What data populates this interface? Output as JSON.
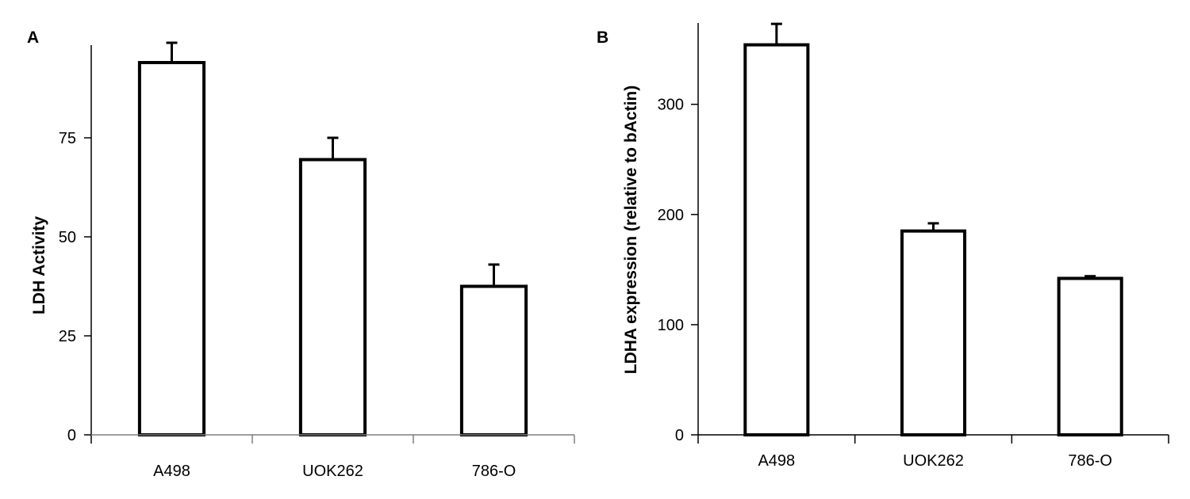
{
  "chart_data": [
    {
      "panel": "A",
      "type": "bar",
      "categories": [
        "A498",
        "UOK262",
        "786-O"
      ],
      "values": [
        94,
        69.5,
        37.5
      ],
      "errors": [
        5,
        5.5,
        5.5
      ],
      "ylabel": "LDH Activity",
      "yticks": [
        "0",
        "25",
        "50",
        "75"
      ],
      "ylim": [
        0,
        100
      ]
    },
    {
      "panel": "B",
      "type": "bar",
      "categories": [
        "A498",
        "UOK262",
        "786-O"
      ],
      "values": [
        354,
        185,
        142
      ],
      "errors": [
        19,
        7,
        2
      ],
      "ylabel": "LDHA expression (relative to bActin)",
      "yticks": [
        "0",
        "100",
        "200",
        "300"
      ],
      "ylim": [
        0,
        375
      ]
    }
  ]
}
